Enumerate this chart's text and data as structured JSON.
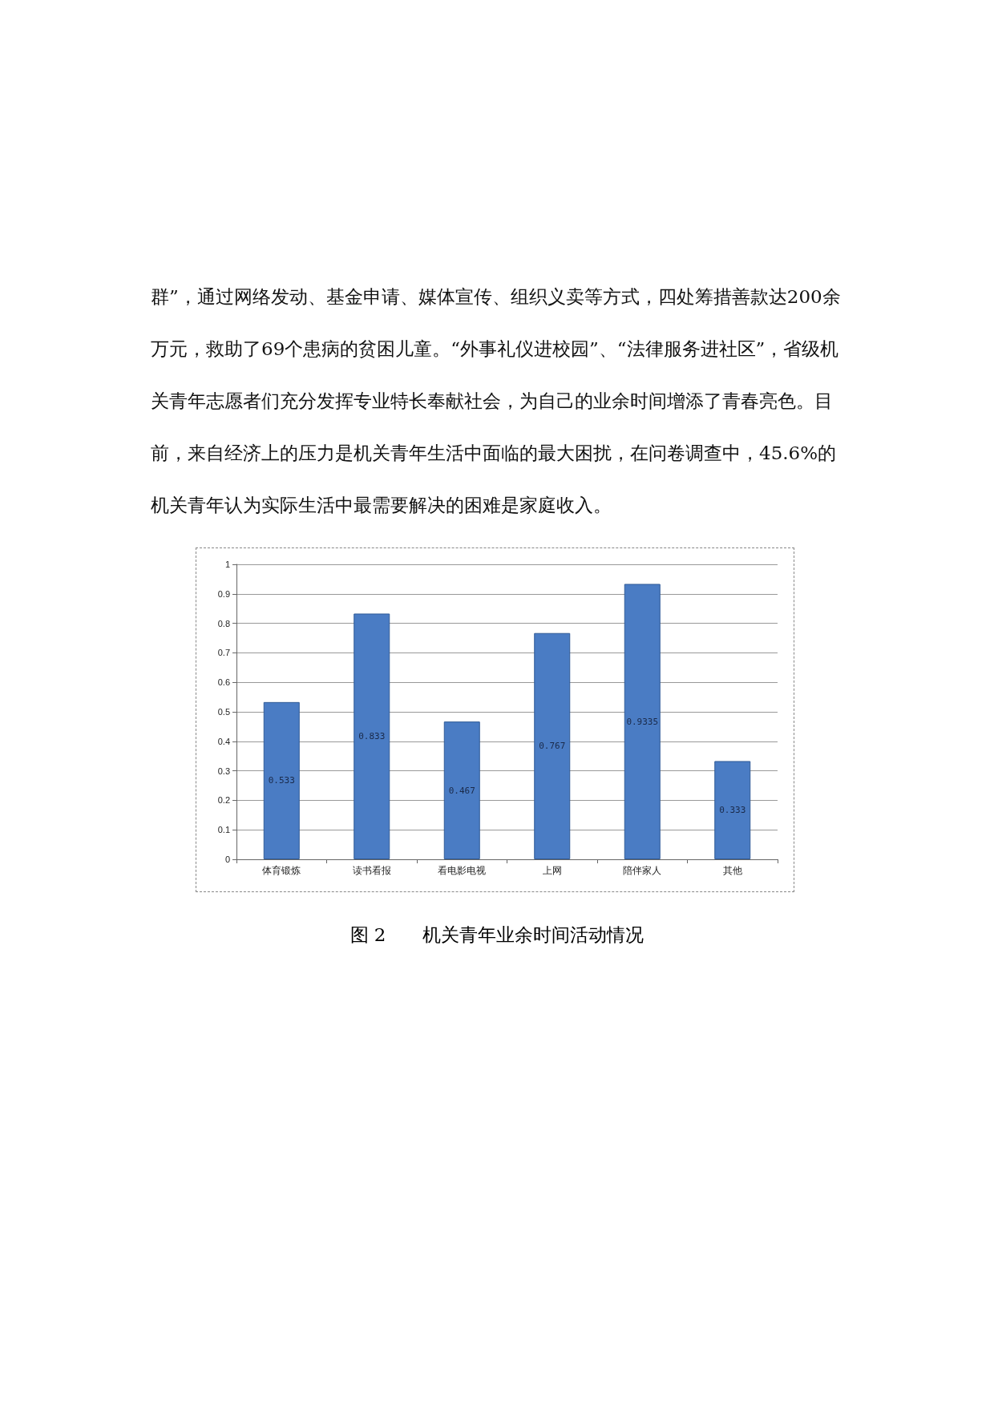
{
  "chart_data": {
    "type": "bar",
    "title": "图 2　　机关青年业余时间活动情况",
    "annotations": [
      "群”，通过网络发动、基金申请、媒体宣传、组织义卖等方式，四处筹措善款达200余万元，救助了69个患病的贫困儿童。“外事礼仪进校园”、“法律服务进社区”，省级机关青年志愿者们充分发挥专业特长奉献社会，为自己的业余时间增添了青春亮色。目前，来自经济上的压力是机关青年生活中面临的最大困扰，在问卷调查中，45.6%的机关青年认为实际生活中最需要解决的困难是家庭收入。"
    ],
    "categories": [
      "体育锻炼",
      "读书看报",
      "看电影电视",
      "上网",
      "陪伴家人",
      "其他"
    ],
    "values": [
      0.533,
      0.833,
      0.467,
      0.767,
      0.9335,
      0.333
    ],
    "color": "#4a7cc4",
    "ylim": [
      0,
      1
    ],
    "yticks": [
      0,
      0.1,
      0.2,
      0.3,
      0.4,
      0.5,
      0.6,
      0.7,
      0.8,
      0.9,
      1
    ],
    "grid": "y",
    "data_labels": true
  }
}
